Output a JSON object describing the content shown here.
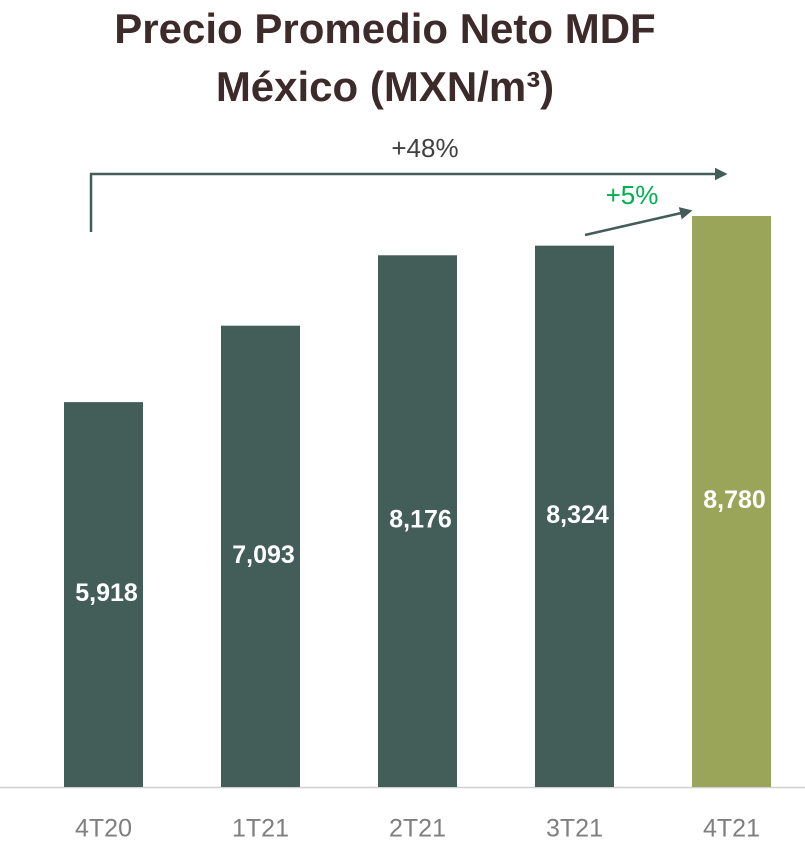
{
  "chart_data": {
    "type": "bar",
    "title": [
      "Precio Promedio Neto MDF",
      "México (MXN/m³)"
    ],
    "categories": [
      "4T20",
      "1T21",
      "2T21",
      "3T21",
      "4T21"
    ],
    "values": [
      5918,
      7093,
      8176,
      8324,
      8780
    ],
    "value_labels": [
      "5,918",
      "7,093",
      "8,176",
      "8,324",
      "8,780"
    ],
    "colors": [
      "#435d59",
      "#435d59",
      "#435d59",
      "#435d59",
      "#9aa55a"
    ],
    "annotations": [
      {
        "text": "+48%",
        "color": "#404040"
      },
      {
        "text": "+5%",
        "color": "#00b050"
      }
    ]
  }
}
